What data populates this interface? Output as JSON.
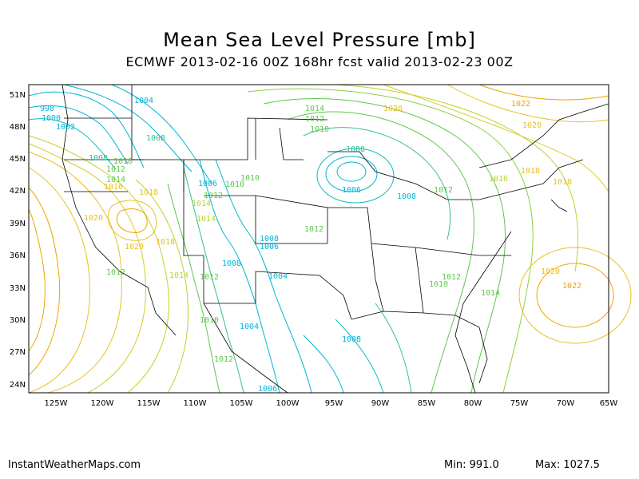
{
  "title": "Mean Sea Level Pressure [mb]",
  "subtitle": "ECMWF 2013-02-16 00Z 168hr fcst valid 2013-02-23 00Z",
  "footer": {
    "site": "InstantWeatherMaps.com",
    "min": "Min:  991.0",
    "max": "Max: 1027.5"
  },
  "colors": {
    "low": "#00b4d8",
    "mid_low": "#30c090",
    "mid": "#5cc84a",
    "mid_high": "#b8d42a",
    "high": "#e8c020",
    "very_high": "#f0a400",
    "border": "#000000"
  },
  "axes": {
    "lon_ticks": [
      "125W",
      "120W",
      "115W",
      "110W",
      "105W",
      "100W",
      "95W",
      "90W",
      "85W",
      "80W",
      "75W",
      "70W",
      "65W"
    ],
    "lat_ticks": [
      "51N",
      "48N",
      "45N",
      "42N",
      "39N",
      "36N",
      "33N",
      "30N",
      "27N",
      "24N"
    ]
  },
  "contour_labels": [
    {
      "t": "998",
      "c": "low"
    },
    {
      "t": "1000",
      "c": "low"
    },
    {
      "t": "1002",
      "c": "low"
    },
    {
      "t": "1004",
      "c": "low"
    },
    {
      "t": "1008",
      "c": "mid_low"
    },
    {
      "t": "1008",
      "c": "mid_low"
    },
    {
      "t": "1010",
      "c": "mid"
    },
    {
      "t": "1012",
      "c": "mid"
    },
    {
      "t": "1014",
      "c": "mid"
    },
    {
      "t": "1016",
      "c": "high"
    },
    {
      "t": "1018",
      "c": "high"
    },
    {
      "t": "1006",
      "c": "low"
    },
    {
      "t": "1010",
      "c": "mid"
    },
    {
      "t": "1012",
      "c": "mid"
    },
    {
      "t": "1014",
      "c": "mid_high"
    },
    {
      "t": "1014",
      "c": "mid_high"
    },
    {
      "t": "1020",
      "c": "high"
    },
    {
      "t": "1020",
      "c": "high"
    },
    {
      "t": "1018",
      "c": "high"
    },
    {
      "t": "1012",
      "c": "mid"
    },
    {
      "t": "1014",
      "c": "mid_high"
    },
    {
      "t": "1012",
      "c": "mid"
    },
    {
      "t": "1010",
      "c": "mid"
    },
    {
      "t": "1008",
      "c": "low"
    },
    {
      "t": "1006",
      "c": "low"
    },
    {
      "t": "1008",
      "c": "low"
    },
    {
      "t": "1004",
      "c": "low"
    },
    {
      "t": "1010",
      "c": "mid"
    },
    {
      "t": "1012",
      "c": "mid"
    },
    {
      "t": "1004",
      "c": "low"
    },
    {
      "t": "1006",
      "c": "low"
    },
    {
      "t": "1014",
      "c": "mid"
    },
    {
      "t": "1012",
      "c": "mid"
    },
    {
      "t": "1010",
      "c": "mid"
    },
    {
      "t": "1008",
      "c": "mid_low"
    },
    {
      "t": "1006",
      "c": "low"
    },
    {
      "t": "1008",
      "c": "low"
    },
    {
      "t": "1012",
      "c": "mid"
    },
    {
      "t": "1020",
      "c": "high"
    },
    {
      "t": "1022",
      "c": "very_high"
    },
    {
      "t": "1020",
      "c": "high"
    },
    {
      "t": "1018",
      "c": "high"
    },
    {
      "t": "1016",
      "c": "mid_high"
    },
    {
      "t": "1012",
      "c": "mid"
    },
    {
      "t": "1012",
      "c": "mid"
    },
    {
      "t": "1010",
      "c": "mid"
    },
    {
      "t": "1014",
      "c": "mid"
    },
    {
      "t": "1020",
      "c": "high"
    },
    {
      "t": "1022",
      "c": "very_high"
    },
    {
      "t": "1018",
      "c": "high"
    },
    {
      "t": "1008",
      "c": "low"
    }
  ]
}
